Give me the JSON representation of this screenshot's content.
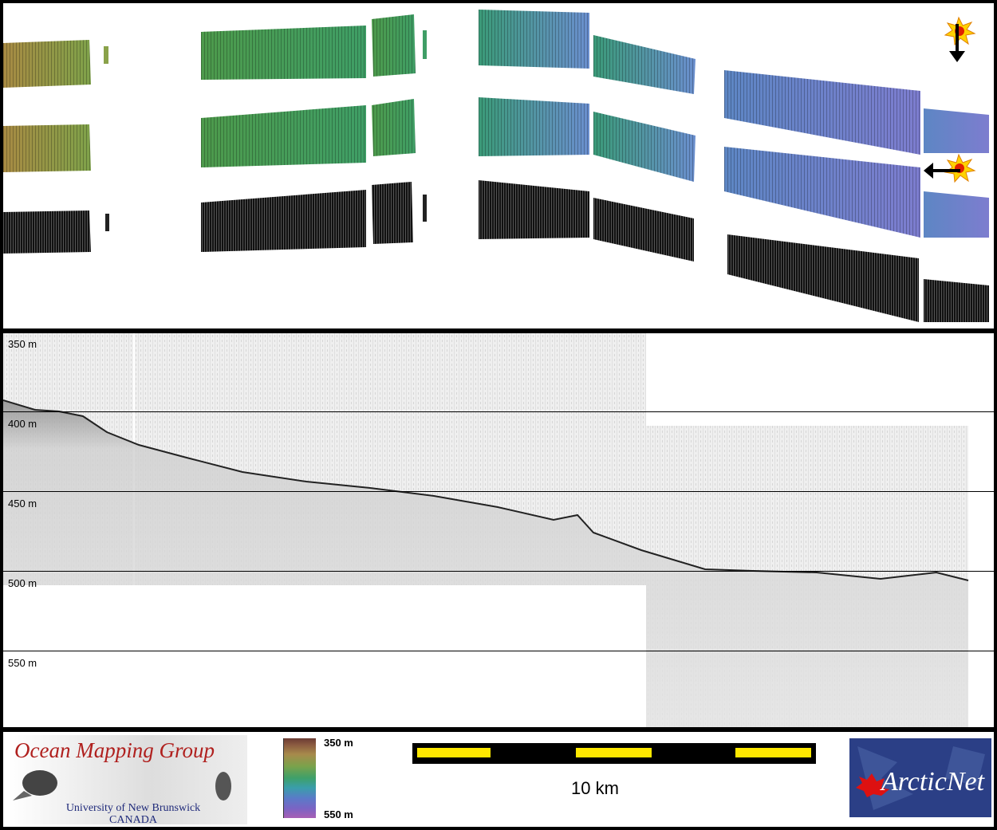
{
  "profile": {
    "depth_labels": [
      "350 m",
      "400 m",
      "450 m",
      "500 m",
      "550 m"
    ]
  },
  "footer": {
    "logo_title": "Ocean Mapping Group",
    "logo_sub1": "University of New Brunswick",
    "logo_sub2": "CANADA",
    "colorbar_top": "350 m",
    "colorbar_bottom": "550 m",
    "scale_label": "10 km",
    "partner_logo": "ArcticNet"
  },
  "icons": {
    "sun_top": "sun-with-down-arrow-icon",
    "sun_side": "sun-with-left-arrow-icon"
  }
}
